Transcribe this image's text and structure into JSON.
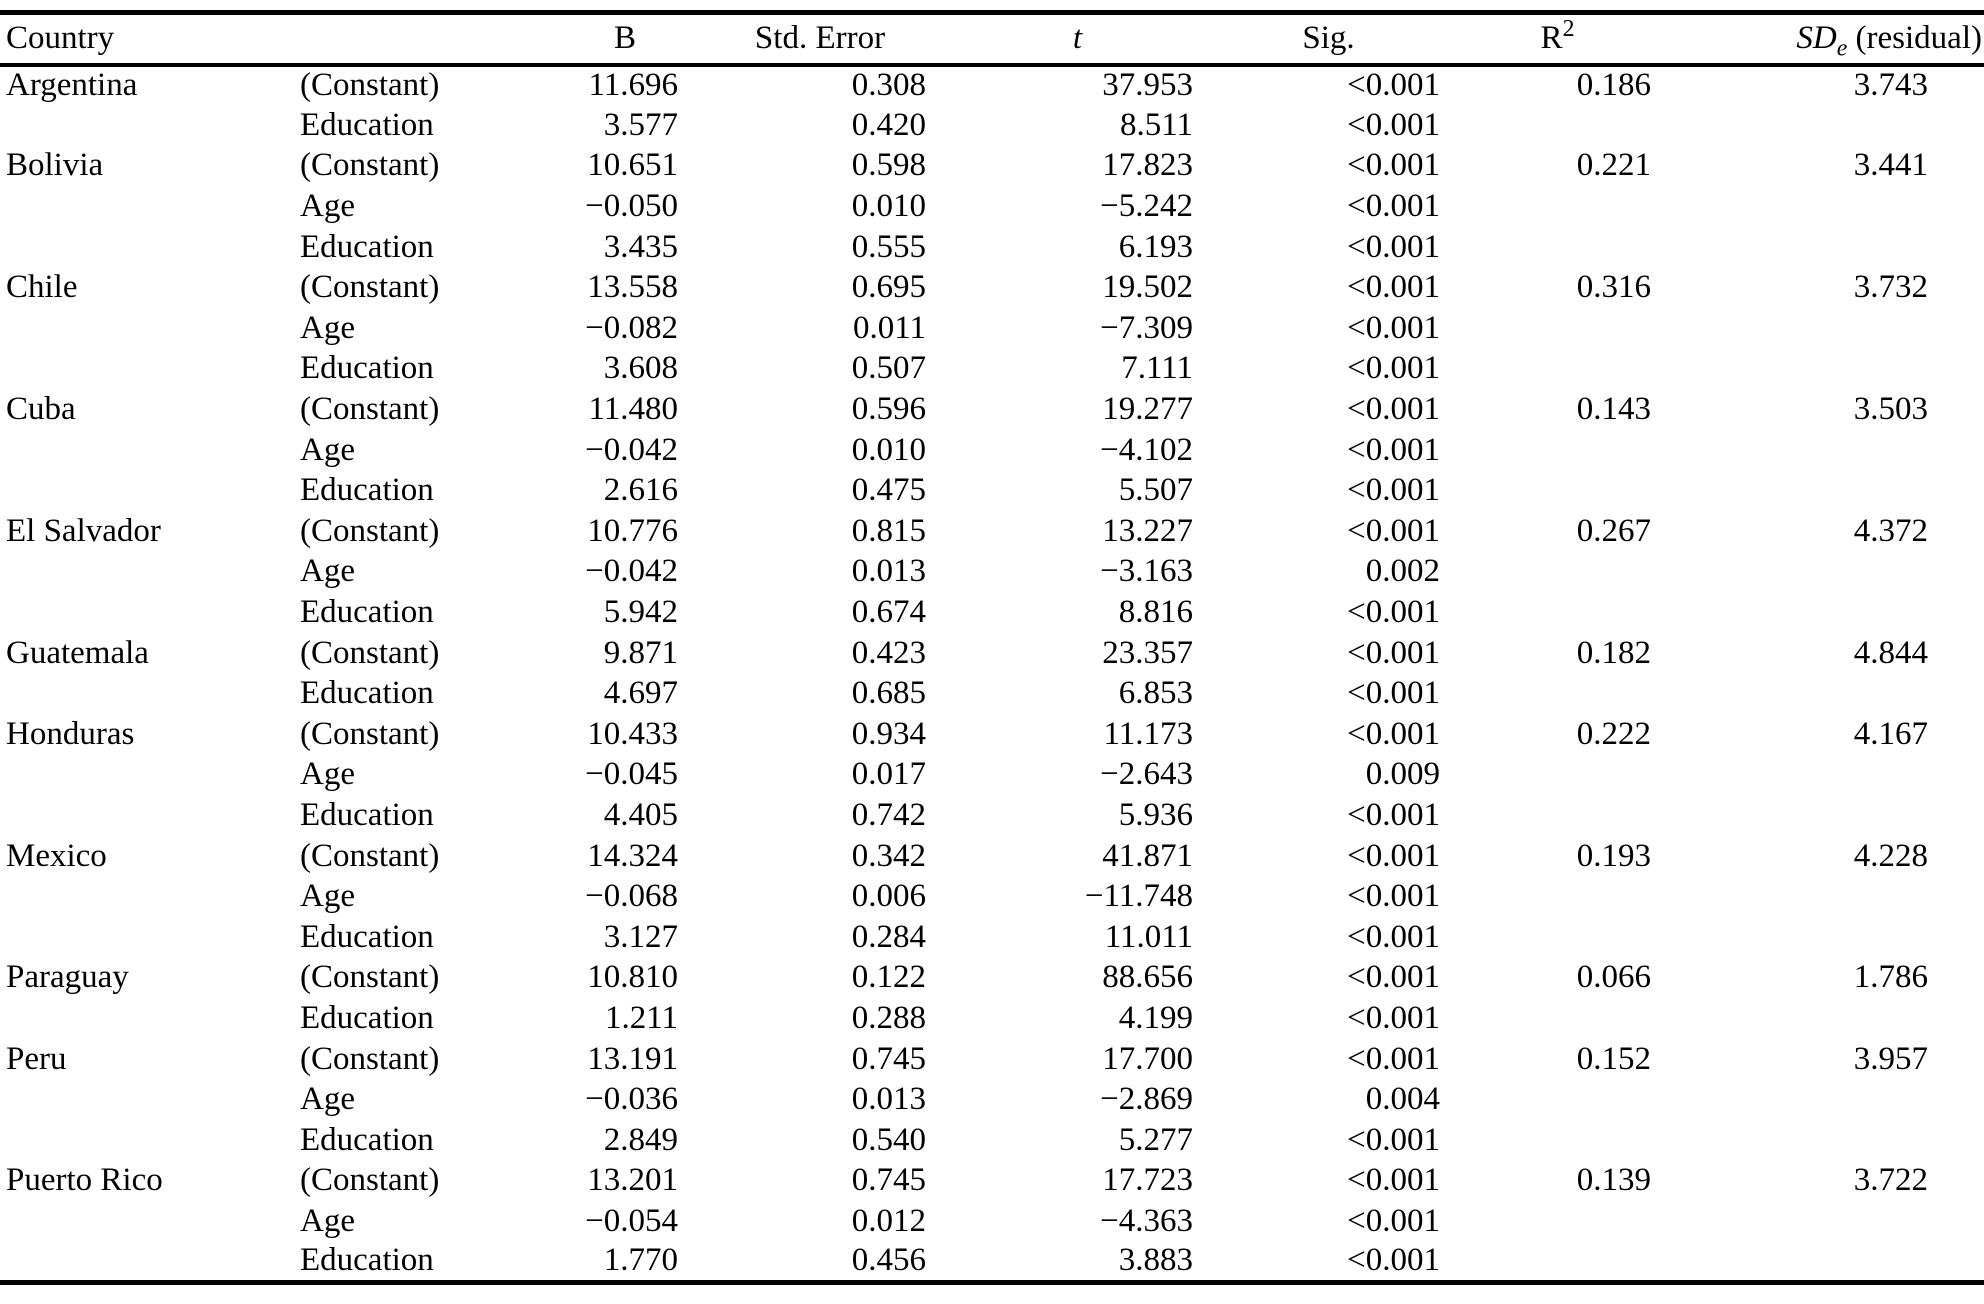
{
  "table": {
    "headers": {
      "country": "Country",
      "b": "B",
      "std_error": "Std. Error",
      "t": "t",
      "sig": "Sig.",
      "r2_base": "R",
      "r2_sup": "2",
      "sde_base": "SD",
      "sde_sub": "e",
      "sde_suffix": " (residual)"
    },
    "rows": [
      {
        "country": "Argentina",
        "predictor": "(Constant)",
        "b": "11.696",
        "se": "0.308",
        "t": "37.953",
        "sig": "<0.001",
        "r2": "0.186",
        "sde": "3.743"
      },
      {
        "country": "",
        "predictor": "Education",
        "b": "3.577",
        "se": "0.420",
        "t": "8.511",
        "sig": "<0.001",
        "r2": "",
        "sde": ""
      },
      {
        "country": "Bolivia",
        "predictor": "(Constant)",
        "b": "10.651",
        "se": "0.598",
        "t": "17.823",
        "sig": "<0.001",
        "r2": "0.221",
        "sde": "3.441"
      },
      {
        "country": "",
        "predictor": "Age",
        "b": "−0.050",
        "se": "0.010",
        "t": "−5.242",
        "sig": "<0.001",
        "r2": "",
        "sde": ""
      },
      {
        "country": "",
        "predictor": "Education",
        "b": "3.435",
        "se": "0.555",
        "t": "6.193",
        "sig": "<0.001",
        "r2": "",
        "sde": ""
      },
      {
        "country": "Chile",
        "predictor": "(Constant)",
        "b": "13.558",
        "se": "0.695",
        "t": "19.502",
        "sig": "<0.001",
        "r2": "0.316",
        "sde": "3.732"
      },
      {
        "country": "",
        "predictor": "Age",
        "b": "−0.082",
        "se": "0.011",
        "t": "−7.309",
        "sig": "<0.001",
        "r2": "",
        "sde": ""
      },
      {
        "country": "",
        "predictor": "Education",
        "b": "3.608",
        "se": "0.507",
        "t": "7.111",
        "sig": "<0.001",
        "r2": "",
        "sde": ""
      },
      {
        "country": "Cuba",
        "predictor": "(Constant)",
        "b": "11.480",
        "se": "0.596",
        "t": "19.277",
        "sig": "<0.001",
        "r2": "0.143",
        "sde": "3.503"
      },
      {
        "country": "",
        "predictor": "Age",
        "b": "−0.042",
        "se": "0.010",
        "t": "−4.102",
        "sig": "<0.001",
        "r2": "",
        "sde": ""
      },
      {
        "country": "",
        "predictor": "Education",
        "b": "2.616",
        "se": "0.475",
        "t": "5.507",
        "sig": "<0.001",
        "r2": "",
        "sde": ""
      },
      {
        "country": "El Salvador",
        "predictor": "(Constant)",
        "b": "10.776",
        "se": "0.815",
        "t": "13.227",
        "sig": "<0.001",
        "r2": "0.267",
        "sde": "4.372"
      },
      {
        "country": "",
        "predictor": "Age",
        "b": "−0.042",
        "se": "0.013",
        "t": "−3.163",
        "sig": "0.002",
        "r2": "",
        "sde": ""
      },
      {
        "country": "",
        "predictor": "Education",
        "b": "5.942",
        "se": "0.674",
        "t": "8.816",
        "sig": "<0.001",
        "r2": "",
        "sde": ""
      },
      {
        "country": "Guatemala",
        "predictor": "(Constant)",
        "b": "9.871",
        "se": "0.423",
        "t": "23.357",
        "sig": "<0.001",
        "r2": "0.182",
        "sde": "4.844"
      },
      {
        "country": "",
        "predictor": "Education",
        "b": "4.697",
        "se": "0.685",
        "t": "6.853",
        "sig": "<0.001",
        "r2": "",
        "sde": ""
      },
      {
        "country": "Honduras",
        "predictor": "(Constant)",
        "b": "10.433",
        "se": "0.934",
        "t": "11.173",
        "sig": "<0.001",
        "r2": "0.222",
        "sde": "4.167"
      },
      {
        "country": "",
        "predictor": "Age",
        "b": "−0.045",
        "se": "0.017",
        "t": "−2.643",
        "sig": "0.009",
        "r2": "",
        "sde": ""
      },
      {
        "country": "",
        "predictor": "Education",
        "b": "4.405",
        "se": "0.742",
        "t": "5.936",
        "sig": "<0.001",
        "r2": "",
        "sde": ""
      },
      {
        "country": "Mexico",
        "predictor": "(Constant)",
        "b": "14.324",
        "se": "0.342",
        "t": "41.871",
        "sig": "<0.001",
        "r2": "0.193",
        "sde": "4.228"
      },
      {
        "country": "",
        "predictor": "Age",
        "b": "−0.068",
        "se": "0.006",
        "t": "−11.748",
        "sig": "<0.001",
        "r2": "",
        "sde": ""
      },
      {
        "country": "",
        "predictor": "Education",
        "b": "3.127",
        "se": "0.284",
        "t": "11.011",
        "sig": "<0.001",
        "r2": "",
        "sde": ""
      },
      {
        "country": "Paraguay",
        "predictor": "(Constant)",
        "b": "10.810",
        "se": "0.122",
        "t": "88.656",
        "sig": "<0.001",
        "r2": "0.066",
        "sde": "1.786"
      },
      {
        "country": "",
        "predictor": "Education",
        "b": "1.211",
        "se": "0.288",
        "t": "4.199",
        "sig": "<0.001",
        "r2": "",
        "sde": ""
      },
      {
        "country": "Peru",
        "predictor": "(Constant)",
        "b": "13.191",
        "se": "0.745",
        "t": "17.700",
        "sig": "<0.001",
        "r2": "0.152",
        "sde": "3.957"
      },
      {
        "country": "",
        "predictor": "Age",
        "b": "−0.036",
        "se": "0.013",
        "t": "−2.869",
        "sig": "0.004",
        "r2": "",
        "sde": ""
      },
      {
        "country": "",
        "predictor": "Education",
        "b": "2.849",
        "se": "0.540",
        "t": "5.277",
        "sig": "<0.001",
        "r2": "",
        "sde": ""
      },
      {
        "country": "Puerto Rico",
        "predictor": "(Constant)",
        "b": "13.201",
        "se": "0.745",
        "t": "17.723",
        "sig": "<0.001",
        "r2": "0.139",
        "sde": "3.722"
      },
      {
        "country": "",
        "predictor": "Age",
        "b": "−0.054",
        "se": "0.012",
        "t": "−4.363",
        "sig": "<0.001",
        "r2": "",
        "sde": ""
      },
      {
        "country": "",
        "predictor": "Education",
        "b": "1.770",
        "se": "0.456",
        "t": "3.883",
        "sig": "<0.001",
        "r2": "",
        "sde": ""
      }
    ]
  }
}
